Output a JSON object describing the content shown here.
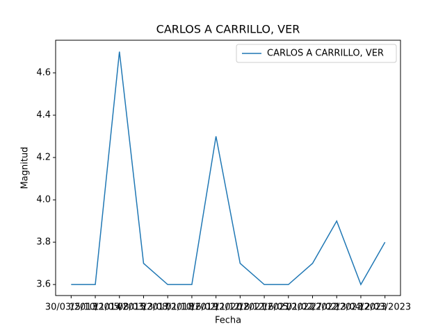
{
  "chart_data": {
    "type": "line",
    "title": "CARLOS A CARRILLO, VER",
    "xlabel": "Fecha",
    "ylabel": "Magnitud",
    "categories": [
      "30/03/2013",
      "15/10/2014",
      "11/05/2015",
      "08/03/2017",
      "13/08/2018",
      "01/10/2019",
      "16/02/2020",
      "11/12/2021",
      "18/12/2021",
      "16/05/2022",
      "01/02/2022",
      "27/02/2023",
      "13/04/2023",
      "12/03/2023"
    ],
    "series": [
      {
        "name": "CARLOS A CARRILLO, VER",
        "color": "#1f77b4",
        "values": [
          3.6,
          3.6,
          4.7,
          3.7,
          3.6,
          3.6,
          4.3,
          3.7,
          3.6,
          3.6,
          3.7,
          3.9,
          3.6,
          3.8
        ]
      }
    ],
    "ylim": [
      3.548,
      4.754
    ],
    "yticks": [
      3.6,
      3.8,
      {
        "value": 4,
        "label": "4.0"
      },
      4.2,
      4.4,
      4.6
    ],
    "legend": "upper right"
  }
}
